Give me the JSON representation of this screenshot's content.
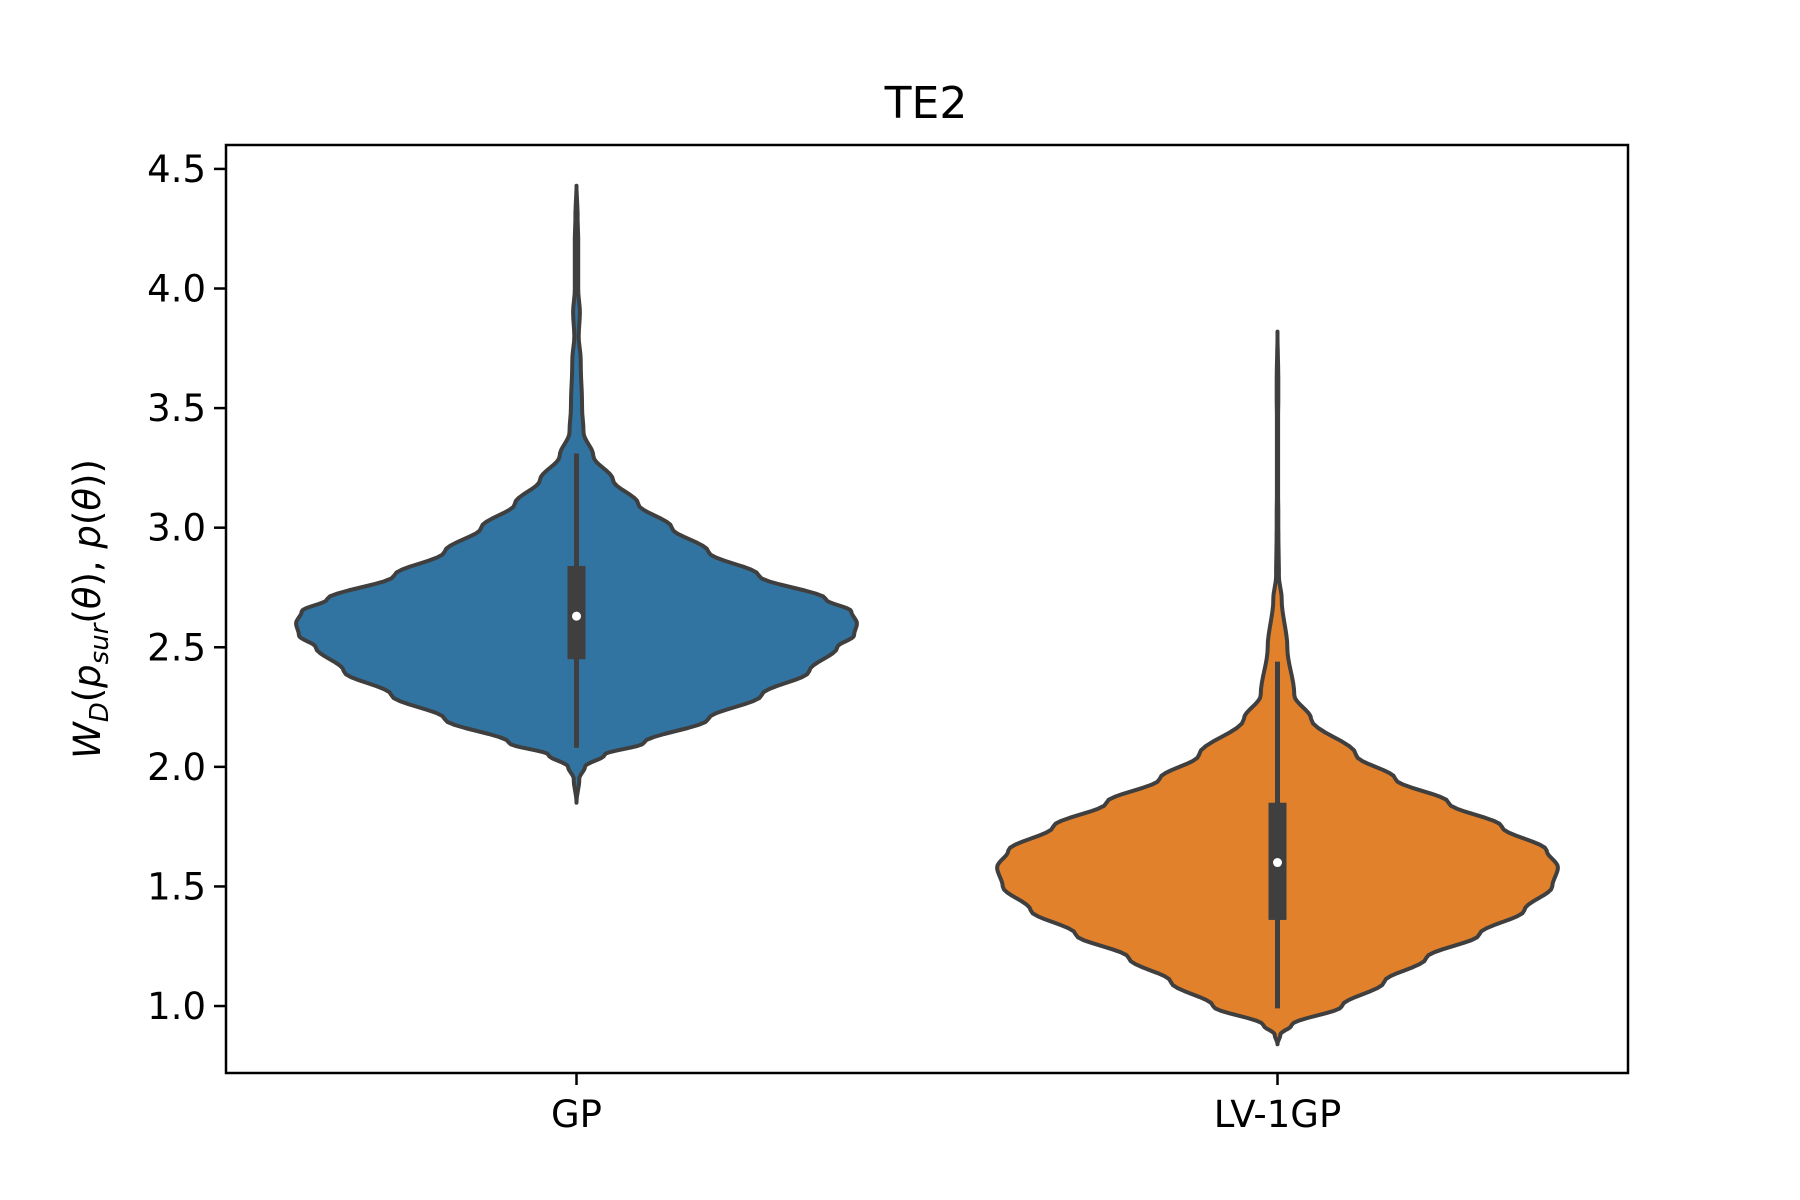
{
  "chart_data": {
    "type": "violin",
    "title": "TE2",
    "xlabel": "",
    "ylabel_parts": {
      "W": "W",
      "D": "D",
      "open1": "(",
      "p": "p",
      "sur": "sur",
      "theta_open": "(",
      "theta1": "θ",
      "close_comma": "), ",
      "p2": "p",
      "open2": "(",
      "theta2": "θ",
      "close2": "))"
    },
    "categories": [
      "GP",
      "LV-1GP"
    ],
    "ylim": [
      0.72,
      4.6
    ],
    "yticks": [
      "1.0",
      "1.5",
      "2.0",
      "2.5",
      "3.0",
      "3.5",
      "4.0",
      "4.5"
    ],
    "ytick_values": [
      1.0,
      1.5,
      2.0,
      2.5,
      3.0,
      3.5,
      4.0,
      4.5
    ],
    "grid": false,
    "colors": {
      "GP": "#3274a1",
      "LV-1GP": "#e1812c",
      "edge": "#3f3f3f",
      "median": "#ffffff"
    },
    "series": [
      {
        "category": "GP",
        "min": 1.85,
        "q1": 2.45,
        "median": 2.63,
        "q3": 2.84,
        "whisker_low": 2.08,
        "whisker_high": 3.31,
        "max": 4.43,
        "density_profile": [
          [
            1.85,
            0.0
          ],
          [
            1.95,
            0.01
          ],
          [
            2.0,
            0.03
          ],
          [
            2.05,
            0.1
          ],
          [
            2.1,
            0.24
          ],
          [
            2.2,
            0.47
          ],
          [
            2.3,
            0.66
          ],
          [
            2.4,
            0.83
          ],
          [
            2.5,
            0.93
          ],
          [
            2.55,
            0.99
          ],
          [
            2.6,
            1.0
          ],
          [
            2.65,
            0.98
          ],
          [
            2.7,
            0.89
          ],
          [
            2.8,
            0.65
          ],
          [
            2.9,
            0.47
          ],
          [
            3.0,
            0.34
          ],
          [
            3.1,
            0.22
          ],
          [
            3.2,
            0.13
          ],
          [
            3.3,
            0.06
          ],
          [
            3.4,
            0.025
          ],
          [
            3.5,
            0.02
          ],
          [
            3.7,
            0.015
          ],
          [
            3.8,
            0.008
          ],
          [
            3.9,
            0.012
          ],
          [
            4.0,
            0.006
          ],
          [
            4.2,
            0.006
          ],
          [
            4.3,
            0.004
          ],
          [
            4.43,
            0.0
          ]
        ]
      },
      {
        "category": "LV-1GP",
        "min": 0.84,
        "q1": 1.36,
        "median": 1.6,
        "q3": 1.85,
        "whisker_low": 0.99,
        "whisker_high": 2.44,
        "max": 3.82,
        "density_profile": [
          [
            0.84,
            0.0
          ],
          [
            0.88,
            0.01
          ],
          [
            0.92,
            0.05
          ],
          [
            1.0,
            0.23
          ],
          [
            1.1,
            0.38
          ],
          [
            1.2,
            0.53
          ],
          [
            1.3,
            0.72
          ],
          [
            1.4,
            0.88
          ],
          [
            1.5,
            0.98
          ],
          [
            1.58,
            1.0
          ],
          [
            1.65,
            0.96
          ],
          [
            1.75,
            0.8
          ],
          [
            1.85,
            0.61
          ],
          [
            1.95,
            0.42
          ],
          [
            2.05,
            0.28
          ],
          [
            2.2,
            0.12
          ],
          [
            2.3,
            0.06
          ],
          [
            2.5,
            0.035
          ],
          [
            2.7,
            0.015
          ],
          [
            2.8,
            0.005
          ],
          [
            3.0,
            0.003
          ],
          [
            3.2,
            0.002
          ],
          [
            3.4,
            0.002
          ],
          [
            3.6,
            0.003
          ],
          [
            3.82,
            0.0
          ]
        ]
      }
    ]
  }
}
